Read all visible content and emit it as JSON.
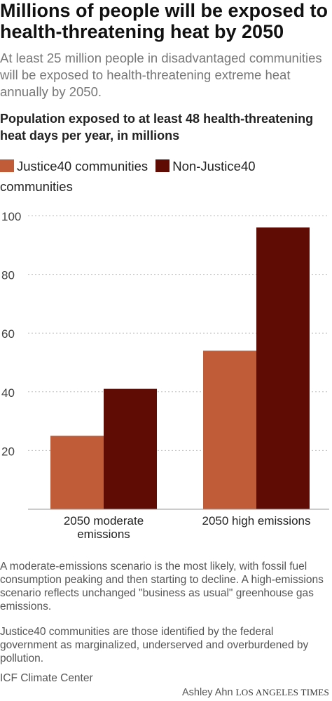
{
  "headline": "Millions of people will be exposed to health-threatening heat by 2050",
  "dek": "At least 25 million people in disadvantaged communities will be exposed to health-threatening extreme heat annually by 2050.",
  "colors": {
    "justice40": "#c05c38",
    "non_justice40": "#5f0d04",
    "grid": "#bbbbbb",
    "axis": "#999999"
  },
  "chart_data": {
    "type": "bar",
    "title": "Population exposed to at least 48 health-threatening heat days per year, in millions",
    "xlabel": "",
    "ylabel": "",
    "categories": [
      "2050 moderate emissions",
      "2050 high emissions"
    ],
    "category_lines": [
      [
        "2050 moderate",
        "emissions"
      ],
      [
        "2050 high emissions"
      ]
    ],
    "series": [
      {
        "name": "Justice40 communities",
        "values": [
          25,
          54
        ]
      },
      {
        "name": "Non-Justice40 communities",
        "values": [
          41,
          96
        ]
      }
    ],
    "ylim": [
      0,
      100
    ],
    "yticks": [
      20,
      40,
      60,
      80,
      100
    ],
    "grid": true,
    "legend": "top-left"
  },
  "notes": [
    "A moderate-emissions scenario is the most likely, with fossil fuel consumption peaking and then starting to decline. A high-emissions scenario reflects unchanged \"business as usual\" greenhouse gas emissions.",
    "Justice40 communities are those identified by the federal government as marginalized, underserved and overburdened by pollution."
  ],
  "source": "ICF Climate Center",
  "credit": {
    "author": "Ashley Ahn",
    "publication": "LOS ANGELES TIMES"
  }
}
